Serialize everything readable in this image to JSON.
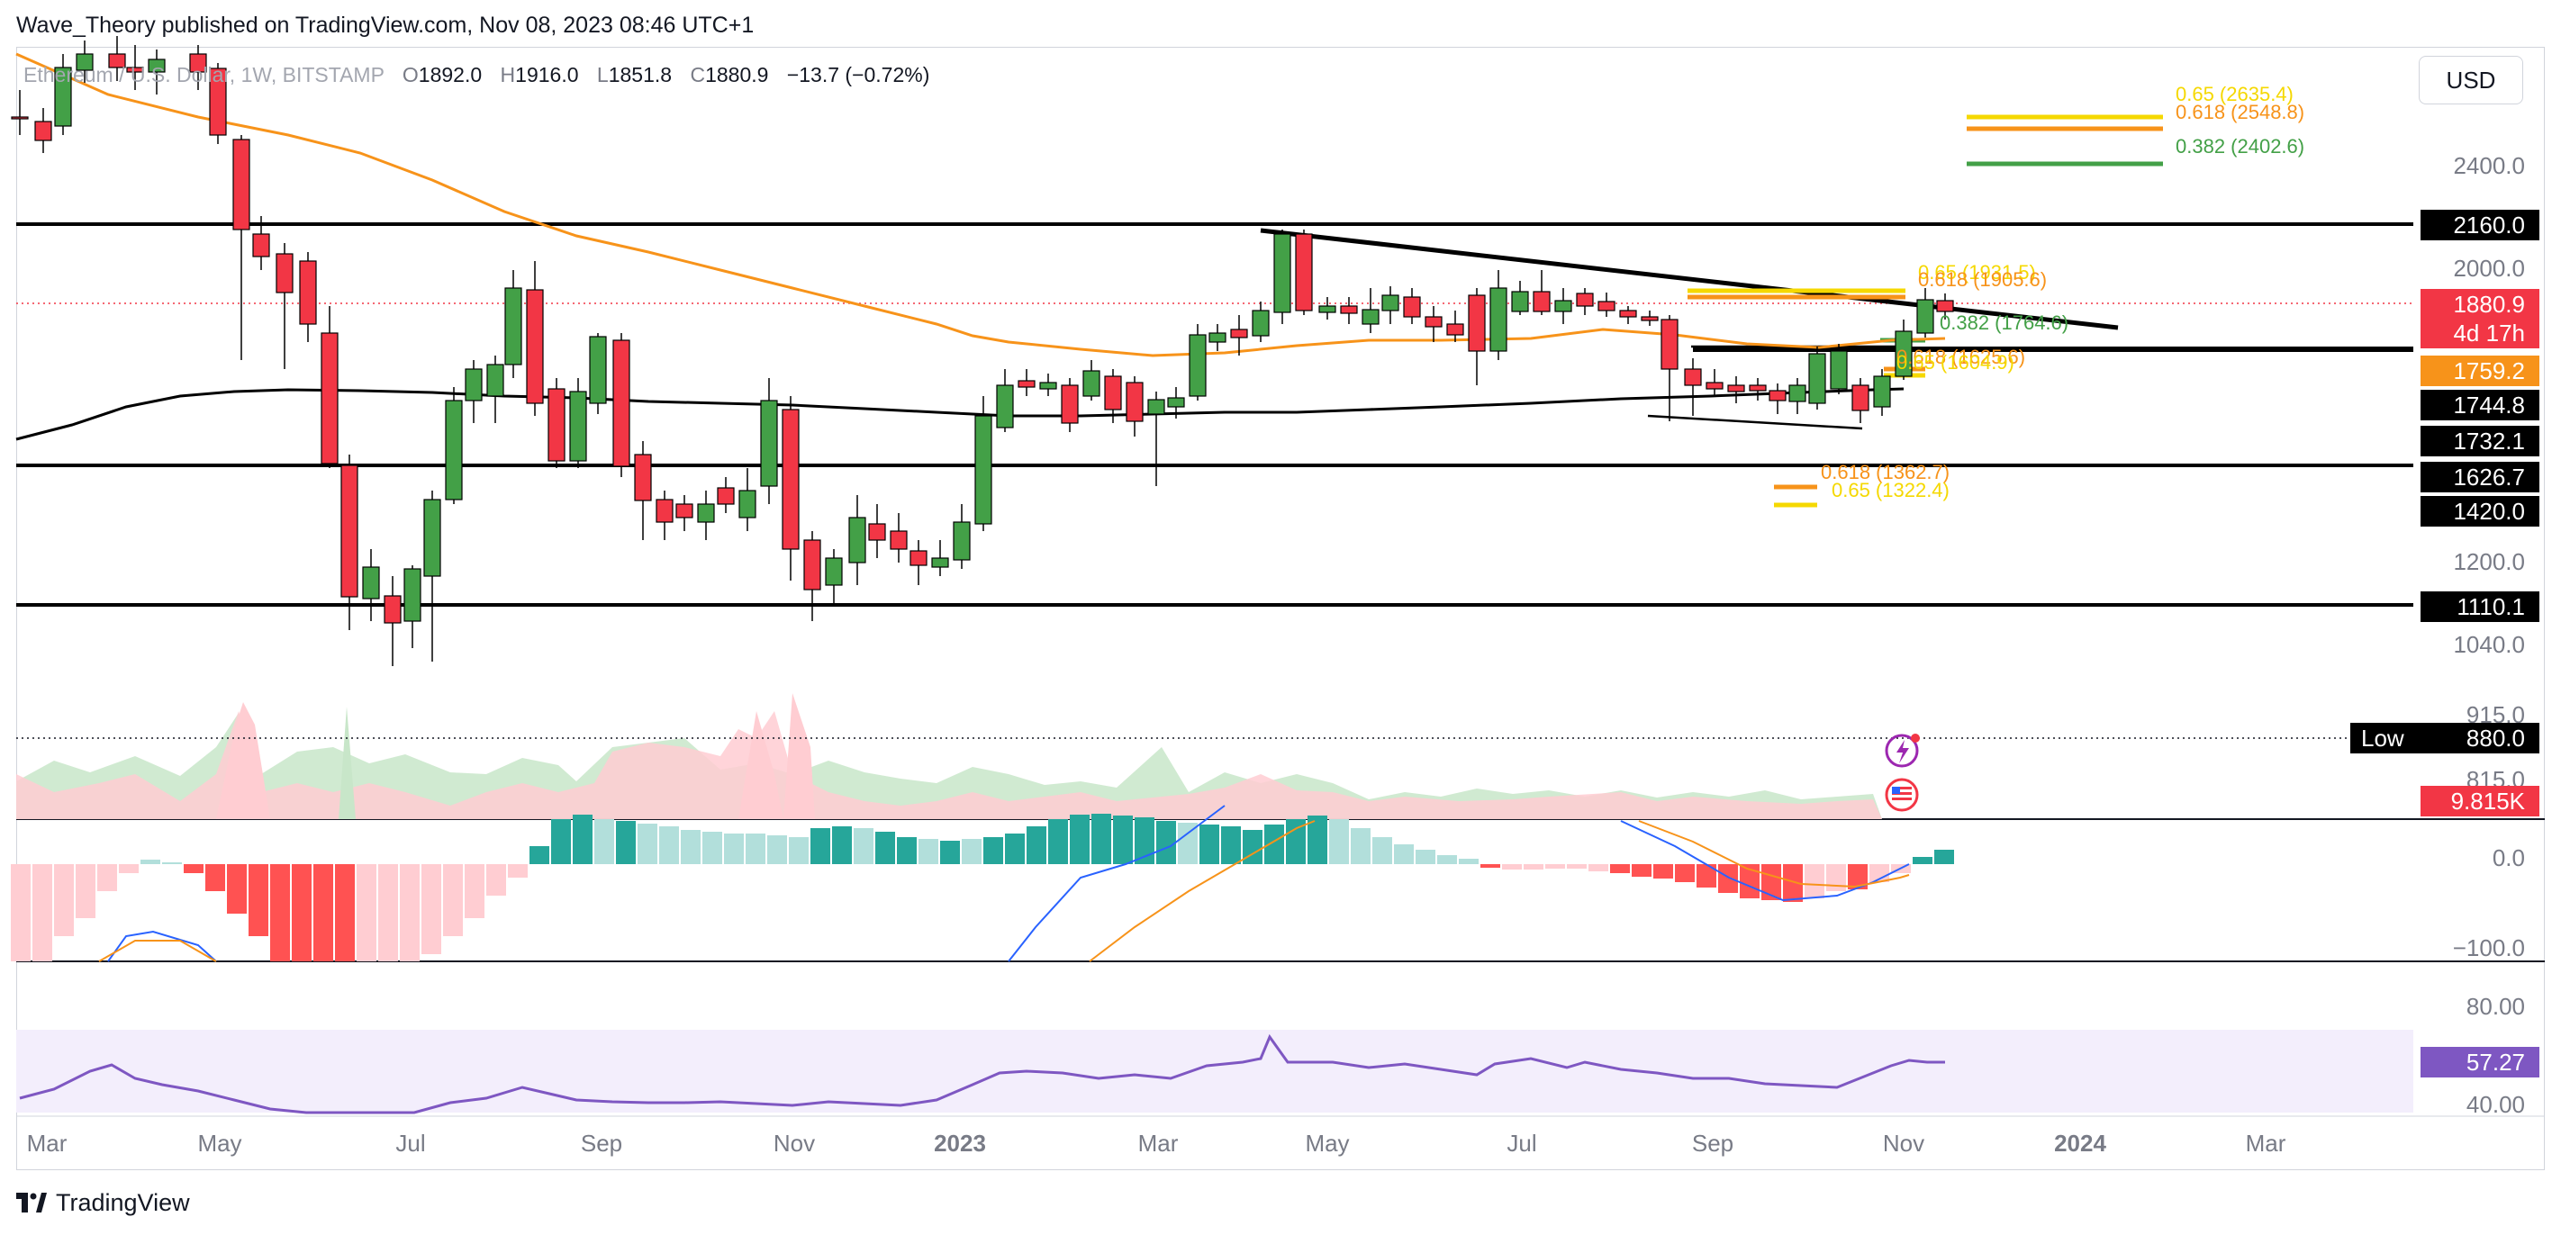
{
  "publish_line": "Wave_Theory published on TradingView.com, Nov 08, 2023 08:46 UTC+1",
  "symbol": {
    "name": "Ethereum / U.S. Dollar, 1W, BITSTAMP",
    "open_label": "O",
    "open": "1892.0",
    "high_label": "H",
    "high": "1916.0",
    "low_label": "L",
    "low": "1851.8",
    "close_label": "C",
    "close": "1880.9",
    "change": "−13.7 (−0.72%)"
  },
  "currency_button": "USD",
  "footer_brand": "TradingView",
  "price_axis": {
    "ticks": [
      "2400.0",
      "2000.0",
      "1200.0",
      "1040.0",
      "915.0",
      "815.0"
    ],
    "tags": [
      {
        "label": "2160.0",
        "bg": "#000000"
      },
      {
        "label": "1880.9",
        "bg": "#f23645"
      },
      {
        "label": "4d 17h",
        "bg": "#f23645"
      },
      {
        "label": "1759.2",
        "bg": "#f7931a"
      },
      {
        "label": "1744.8",
        "bg": "#000000"
      },
      {
        "label": "1732.1",
        "bg": "#000000"
      },
      {
        "label": "1626.7",
        "bg": "#000000"
      },
      {
        "label": "1420.0",
        "bg": "#000000"
      },
      {
        "label": "1110.1",
        "bg": "#000000"
      },
      {
        "label": "9.815K",
        "bg": "#f23645"
      }
    ],
    "low_marker": {
      "label": "Low",
      "value": "880.0"
    }
  },
  "macd_axis": {
    "ticks": [
      "0.0",
      "−100.0"
    ]
  },
  "rsi_axis": {
    "ticks": [
      "80.00",
      "40.00"
    ],
    "value_tag": "57.27",
    "value_bg": "#7e57c2"
  },
  "time_axis": [
    "Mar",
    "May",
    "Jul",
    "Sep",
    "Nov",
    "2023",
    "Mar",
    "May",
    "Jul",
    "Sep",
    "Nov",
    "2024",
    "Mar"
  ],
  "fib_labels": [
    {
      "text": "0.65 (2635.4)",
      "color": "#f5d800"
    },
    {
      "text": "0.618 (2548.8)",
      "color": "#f7931a"
    },
    {
      "text": "0.382 (2402.6)",
      "color": "#43a047"
    },
    {
      "text": "0.65 (1931.5)",
      "color": "#f5d800"
    },
    {
      "text": "0.618 (1905.6)",
      "color": "#f7931a"
    },
    {
      "text": "0.382 (1764.6)",
      "color": "#43a047"
    },
    {
      "text": "0.618 (1625.6)",
      "color": "#f7931a"
    },
    {
      "text": "0.65 (1604.9)",
      "color": "#f5d800"
    },
    {
      "text": "0.618 (1362.7)",
      "color": "#f7931a"
    },
    {
      "text": "0.65 (1322.4)",
      "color": "#f5d800"
    }
  ],
  "colors": {
    "up": "#43a047",
    "down": "#f23645",
    "ema50": "#f7931a",
    "ema200": "#000000",
    "macd_up_strong": "#26a69a",
    "macd_up_weak": "#b2dfdb",
    "macd_down_strong": "#ff5252",
    "macd_down_weak": "#ffcdd2",
    "rsi": "#7e57c2",
    "rsi_band": "#ede7f6"
  }
}
